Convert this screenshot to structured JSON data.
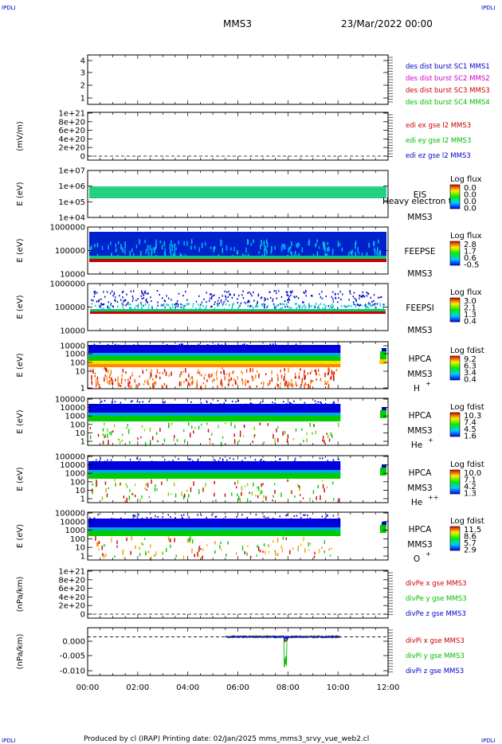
{
  "header": {
    "corner_label": "IPDLI",
    "mission": "MMS3",
    "datetime": "23/Mar/2022 00:00"
  },
  "footer": {
    "text": "Produced by cl (IRAP)   Printing date: 02/Jan/2025   mms_mms3_srvy_vue_web2.cl"
  },
  "colors": {
    "blue": "#0000cc",
    "magenta": "#cc00cc",
    "red": "#cc0000",
    "green": "#00bb00"
  },
  "chart_data": [
    {
      "type": "table",
      "panel": "burst",
      "ylabel": "",
      "yticks": [
        "4",
        "3",
        "2",
        "1"
      ],
      "legend": [
        {
          "text": "des dist burst SC1 MMS1",
          "color": "#0000cc"
        },
        {
          "text": "des dist burst SC2 MMS2",
          "color": "#cc00cc"
        },
        {
          "text": "des dist burst SC3 MMS3",
          "color": "#cc0000"
        },
        {
          "text": "des dist burst SC4 MMS4",
          "color": "#00bb00"
        }
      ]
    },
    {
      "type": "line",
      "panel": "edi",
      "ylabel": "(mV/m)",
      "yticks": [
        "1e+21",
        "8e+20",
        "6e+20",
        "4e+20",
        "2e+20",
        "0"
      ],
      "legend": [
        {
          "text": "edi ex gse l2 MMS3",
          "color": "#cc0000"
        },
        {
          "text": "edi ey gse l2 MMS3",
          "color": "#00bb00"
        },
        {
          "text": "edi ez gse l2 MMS3",
          "color": "#0000cc"
        }
      ]
    },
    {
      "type": "heatmap",
      "panel": "eis",
      "ylabel": "E (eV)",
      "yticks": [
        "1e+07",
        "1e+06",
        "1e+05",
        "1e+04"
      ],
      "instrument": "EIS",
      "spacecraft": "MMS3",
      "overlay_text": "Heavy electron tof",
      "colorbar_title": "Log flux",
      "colorbar_ticks": [
        "0.0",
        "0.0",
        "0.0",
        "0.0"
      ]
    },
    {
      "type": "heatmap",
      "panel": "feepse",
      "ylabel": "E (eV)",
      "yticks": [
        "1000000",
        "100000",
        "10000"
      ],
      "instrument": "FEEPSE",
      "spacecraft": "MMS3",
      "colorbar_title": "Log flux",
      "colorbar_ticks": [
        "2.8",
        "1.7",
        "0.6",
        "-0.5"
      ]
    },
    {
      "type": "heatmap",
      "panel": "feepsi",
      "ylabel": "E (eV)",
      "yticks": [
        "1000000",
        "100000",
        "10000"
      ],
      "instrument": "FEEPSI",
      "spacecraft": "MMS3",
      "colorbar_title": "Log flux",
      "colorbar_ticks": [
        "3.0",
        "2.1",
        "1.3",
        "0.4"
      ]
    },
    {
      "type": "heatmap",
      "panel": "hpca-h",
      "ylabel": "E (eV)",
      "yticks": [
        "10000",
        "1000",
        "100",
        "10",
        "1"
      ],
      "instrument": "HPCA",
      "spacecraft": "MMS3",
      "species": "H",
      "charge": "+",
      "colorbar_title": "Log fdist",
      "colorbar_ticks": [
        "9.2",
        "6.3",
        "3.4",
        "0.4"
      ]
    },
    {
      "type": "heatmap",
      "panel": "hpca-he1",
      "ylabel": "E (eV)",
      "yticks": [
        "100000",
        "10000",
        "1000",
        "100",
        "10",
        "1"
      ],
      "instrument": "HPCA",
      "spacecraft": "MMS3",
      "species": "He",
      "charge": "+",
      "colorbar_title": "Log fdist",
      "colorbar_ticks": [
        "10.3",
        "7.4",
        "4.5",
        "1.6"
      ]
    },
    {
      "type": "heatmap",
      "panel": "hpca-he2",
      "ylabel": "E (eV)",
      "yticks": [
        "100000",
        "10000",
        "1000",
        "100",
        "10",
        "1"
      ],
      "instrument": "HPCA",
      "spacecraft": "MMS3",
      "species": "He",
      "charge": "++",
      "colorbar_title": "Log fdist",
      "colorbar_ticks": [
        "10.0",
        "7.1",
        "4.2",
        "1.3"
      ]
    },
    {
      "type": "heatmap",
      "panel": "hpca-o",
      "ylabel": "E (eV)",
      "yticks": [
        "100000",
        "10000",
        "1000",
        "100",
        "10",
        "1"
      ],
      "instrument": "HPCA",
      "spacecraft": "MMS3",
      "species": "O",
      "charge": "+",
      "colorbar_title": "Log fdist",
      "colorbar_ticks": [
        "11.5",
        "8.6",
        "5.7",
        "2.9"
      ]
    },
    {
      "type": "line",
      "panel": "divpe",
      "ylabel": "(nPa/km)",
      "yticks": [
        "1e+21",
        "8e+20",
        "6e+20",
        "4e+20",
        "2e+20",
        "0"
      ],
      "legend": [
        {
          "text": "divPe x gse MMS3",
          "color": "#cc0000"
        },
        {
          "text": "divPe y gse MMS3",
          "color": "#00bb00"
        },
        {
          "text": "divPe z gse MMS3",
          "color": "#0000cc"
        }
      ]
    },
    {
      "type": "line",
      "panel": "divpi",
      "ylabel": "(nPa/km)",
      "yticks": [
        "0.000",
        "-0.005",
        "-0.010"
      ],
      "ylim": [
        -0.012,
        0.002
      ],
      "x_range_hours": [
        5.5,
        10.1
      ],
      "legend": [
        {
          "text": "divPi x gse MMS3",
          "color": "#cc0000"
        },
        {
          "text": "divPi y gse MMS3",
          "color": "#00bb00"
        },
        {
          "text": "divPi z gse MMS3",
          "color": "#0000cc"
        }
      ]
    }
  ],
  "xaxis": {
    "ticks": [
      "00:00",
      "02:00",
      "04:00",
      "06:00",
      "08:00",
      "10:00",
      "12:00"
    ]
  }
}
